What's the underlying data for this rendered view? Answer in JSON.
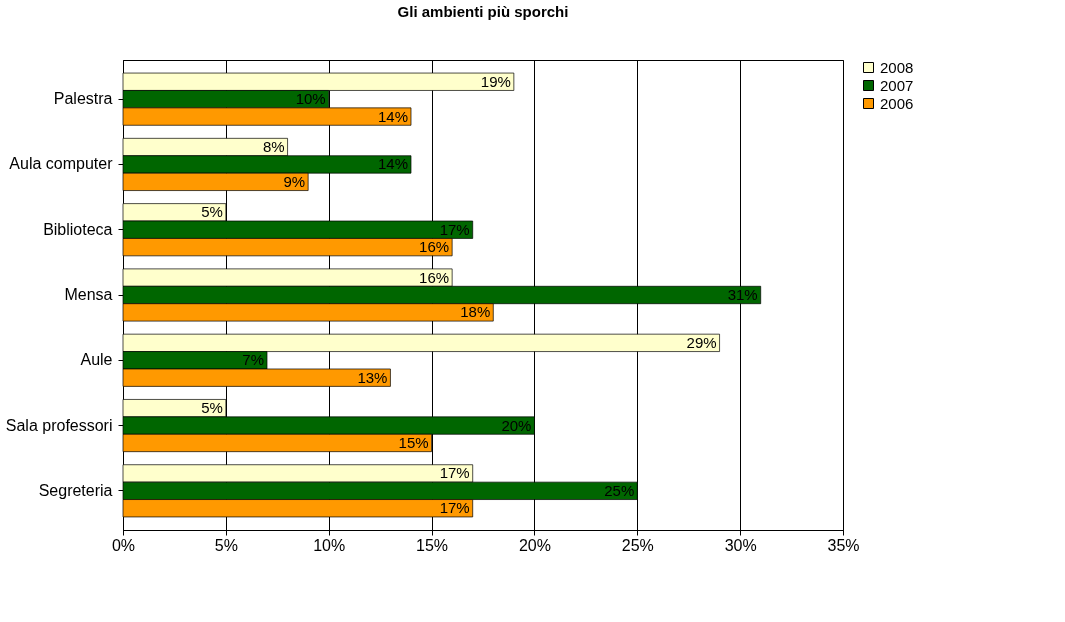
{
  "chart_data": {
    "type": "bar",
    "orientation": "horizontal",
    "title": "Gli ambienti più sporchi",
    "categories": [
      "Palestra",
      "Aula computer",
      "Biblioteca",
      "Mensa",
      "Aule",
      "Sala professori",
      "Segreteria"
    ],
    "series": [
      {
        "name": "2008",
        "color": "#ffffcc",
        "values": [
          19,
          8,
          5,
          16,
          29,
          5,
          17
        ],
        "value_labels": [
          "19%",
          "8%",
          "5%",
          "16%",
          "29%",
          "5%",
          "17%"
        ]
      },
      {
        "name": "2007",
        "color": "#006600",
        "values": [
          10,
          14,
          17,
          31,
          7,
          20,
          25
        ],
        "value_labels": [
          "10%",
          "14%",
          "17%",
          "31%",
          "7%",
          "20%",
          "25%"
        ]
      },
      {
        "name": "2006",
        "color": "#ff9900",
        "values": [
          14,
          9,
          16,
          18,
          13,
          15,
          17
        ],
        "value_labels": [
          "14%",
          "9%",
          "16%",
          "18%",
          "13%",
          "15%",
          "17%"
        ]
      }
    ],
    "xlim": [
      0,
      35
    ],
    "xticks": [
      {
        "value": 0,
        "label": "0%"
      },
      {
        "value": 5,
        "label": "5%"
      },
      {
        "value": 10,
        "label": "10%"
      },
      {
        "value": 15,
        "label": "15%"
      },
      {
        "value": 20,
        "label": "20%"
      },
      {
        "value": 25,
        "label": "25%"
      },
      {
        "value": 30,
        "label": "30%"
      },
      {
        "value": 35,
        "label": "35%"
      }
    ],
    "grid": "x",
    "legend": "right"
  }
}
